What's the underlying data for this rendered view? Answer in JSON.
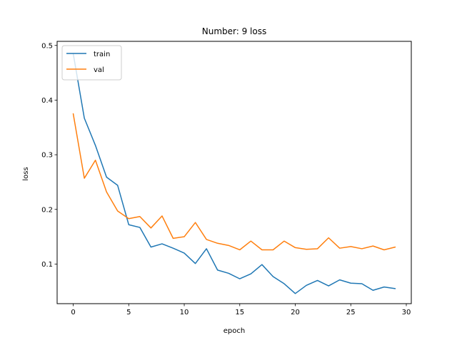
{
  "chart_data": {
    "type": "line",
    "title": "Number: 9 loss",
    "xlabel": "epoch",
    "ylabel": "loss",
    "xlim": [
      -1.45,
      30.45
    ],
    "ylim": [
      0.0275,
      0.5075
    ],
    "xticks": [
      0,
      5,
      10,
      15,
      20,
      25,
      30
    ],
    "yticks": [
      0.1,
      0.2,
      0.3,
      0.4,
      0.5
    ],
    "grid": false,
    "legend_position": "top-left",
    "x": [
      0,
      1,
      2,
      3,
      4,
      5,
      6,
      7,
      8,
      9,
      10,
      11,
      12,
      13,
      14,
      15,
      16,
      17,
      18,
      19,
      20,
      21,
      22,
      23,
      24,
      25,
      26,
      27,
      28,
      29
    ],
    "series": [
      {
        "name": "train",
        "color": "#1f77b4",
        "values": [
          0.485,
          0.367,
          0.317,
          0.259,
          0.244,
          0.172,
          0.167,
          0.131,
          0.137,
          0.129,
          0.12,
          0.101,
          0.128,
          0.089,
          0.083,
          0.073,
          0.082,
          0.099,
          0.077,
          0.064,
          0.046,
          0.061,
          0.07,
          0.06,
          0.071,
          0.065,
          0.064,
          0.052,
          0.058,
          0.055
        ]
      },
      {
        "name": "val",
        "color": "#ff7f0e",
        "values": [
          0.375,
          0.257,
          0.29,
          0.232,
          0.197,
          0.183,
          0.187,
          0.166,
          0.188,
          0.147,
          0.15,
          0.176,
          0.145,
          0.138,
          0.134,
          0.126,
          0.142,
          0.126,
          0.126,
          0.142,
          0.13,
          0.127,
          0.128,
          0.148,
          0.129,
          0.132,
          0.128,
          0.133,
          0.126,
          0.131
        ]
      }
    ]
  }
}
